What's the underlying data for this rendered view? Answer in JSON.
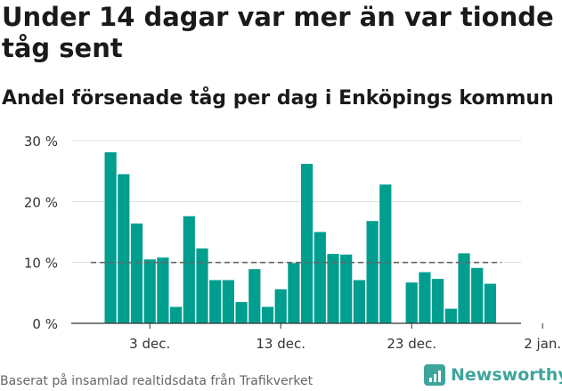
{
  "title": "Under 14 dagar var mer än var tionde tåg sent",
  "subtitle": "Andel försenade tåg per dag i Enköpings kommun",
  "footer": {
    "source": "Baserat på insamlad realtidsdata från Trafikverket",
    "brand": "Newsworthy",
    "brand_color": "#3fa59c"
  },
  "chart_data": {
    "type": "bar",
    "x_start_date": "2023-11-30",
    "values": [
      28.1,
      24.5,
      16.4,
      10.5,
      10.8,
      2.7,
      17.6,
      12.3,
      7.1,
      7.1,
      3.5,
      8.9,
      2.7,
      5.6,
      9.9,
      26.2,
      15.0,
      11.4,
      11.3,
      7.1,
      16.8,
      22.8,
      null,
      6.7,
      8.4,
      7.3,
      2.4,
      11.5,
      9.1,
      6.5
    ],
    "ylim": [
      0,
      30
    ],
    "yticks": [
      {
        "value": 0,
        "label": "0 %"
      },
      {
        "value": 10,
        "label": "10 %"
      },
      {
        "value": 20,
        "label": "20 %"
      },
      {
        "value": 30,
        "label": "30 %"
      }
    ],
    "xticks": [
      {
        "date": "2023-12-03",
        "label": "3 dec."
      },
      {
        "date": "2023-12-13",
        "label": "13 dec."
      },
      {
        "date": "2023-12-23",
        "label": "23 dec."
      },
      {
        "date": "2024-01-02",
        "label": "2 jan."
      }
    ],
    "reference_line": {
      "value": 10,
      "style": "dashed"
    },
    "bar_color": "#009e8e",
    "grid": true
  }
}
